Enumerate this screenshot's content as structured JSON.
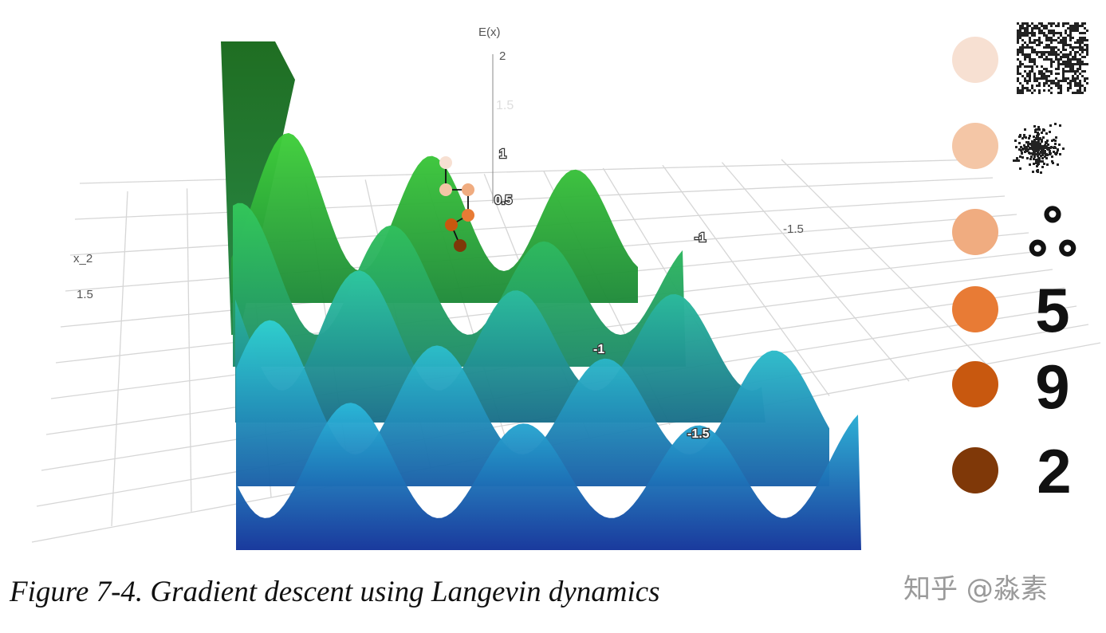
{
  "figure": {
    "z_axis": {
      "label": "E(x)",
      "ticks": [
        "2",
        "1.5",
        "1",
        "0.5"
      ]
    },
    "x2_axis": {
      "label": "x_2",
      "ticks": [
        "1.5"
      ]
    },
    "floor_labels": [
      "-1",
      "-1.5",
      "-1",
      "-1.5"
    ]
  },
  "caption": "Figure 7-4. Gradient descent using Langevin dynamics",
  "watermark": "知乎 @淼素"
}
